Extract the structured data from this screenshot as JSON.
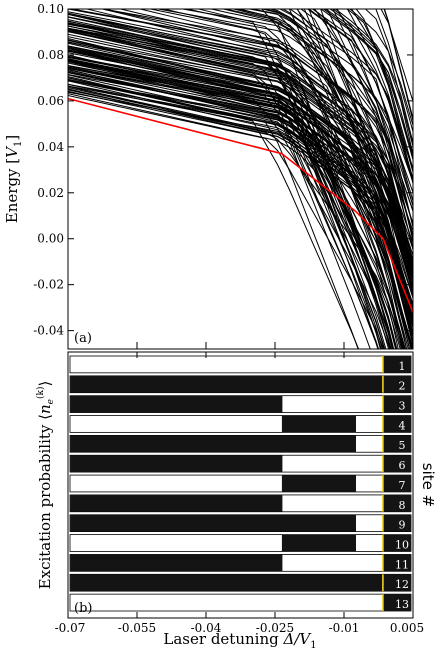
{
  "chart_data": [
    {
      "panel": "(a)",
      "type": "line",
      "ylabel": "Energy [V1]",
      "ylabel_parts": {
        "main": "Energy [",
        "sym": "V",
        "sub": "1",
        "end": "]"
      },
      "xlim": [
        -0.07,
        0.005
      ],
      "ylim": [
        -0.048,
        0.1
      ],
      "yticks": [
        -0.04,
        -0.02,
        0.0,
        0.02,
        0.04,
        0.06,
        0.08,
        0.1
      ],
      "ytick_labels": [
        "-0.04",
        "-0.02",
        "0.00",
        "0.02",
        "0.04",
        "0.06",
        "0.08",
        "0.10"
      ],
      "xticks": [
        -0.055,
        -0.04,
        -0.025,
        -0.01
      ],
      "ground_state": {
        "color": "#ff0000",
        "x": [
          -0.07,
          -0.0235,
          -0.0075,
          -0.0015,
          0.005
        ],
        "y": [
          0.061,
          0.037,
          0.012,
          0.0,
          -0.032
        ]
      },
      "excited_color": "#000000",
      "excited_states_count": 160
    },
    {
      "panel": "(b)",
      "type": "heatmap",
      "ylabel": "Excitation probability <n_e^(k)>",
      "ylabel_parts": {
        "main": "Excitation probability ",
        "lt": "⟨",
        "sym": "n",
        "sub": "e",
        "sup": "(k)",
        "gt": "⟩"
      },
      "right_label": "site #",
      "xlabel": "Laser detuning Δ/V1",
      "xlabel_parts": {
        "main": "Laser detuning ",
        "sym": "Δ/V",
        "sub": "1"
      },
      "xlim": [
        -0.07,
        0.005
      ],
      "xticks": [
        -0.07,
        -0.055,
        -0.04,
        -0.025,
        -0.01,
        0.005
      ],
      "xtick_labels": [
        "-0.07",
        "-0.055",
        "-0.04",
        "-0.025",
        "-0.01",
        "0.005"
      ],
      "colors": {
        "excited": "#141414",
        "ground": "#ffffff",
        "accent": "#f0d020"
      },
      "sites": [
        {
          "label": "1",
          "excited_from": [
            -0.0015
          ]
        },
        {
          "label": "2",
          "excited_from": [
            -0.0695
          ]
        },
        {
          "label": "3",
          "excited_from": [
            -0.0695,
            -0.0235
          ]
        },
        {
          "label": "4",
          "excited_from": [
            -0.0235,
            -0.0075
          ]
        },
        {
          "label": "5",
          "excited_from": [
            -0.0695,
            -0.0075
          ]
        },
        {
          "label": "6",
          "excited_from": [
            -0.0695,
            -0.0235
          ]
        },
        {
          "label": "7",
          "excited_from": [
            -0.0235,
            -0.0075
          ]
        },
        {
          "label": "8",
          "excited_from": [
            -0.0695,
            -0.0235
          ]
        },
        {
          "label": "9",
          "excited_from": [
            -0.0695,
            -0.0075
          ]
        },
        {
          "label": "10",
          "excited_from": [
            -0.0235,
            -0.0075
          ]
        },
        {
          "label": "11",
          "excited_from": [
            -0.0695,
            -0.0235
          ]
        },
        {
          "label": "12",
          "excited_from": [
            -0.0695
          ]
        },
        {
          "label": "13",
          "excited_from": [
            -0.0015
          ]
        }
      ]
    }
  ]
}
